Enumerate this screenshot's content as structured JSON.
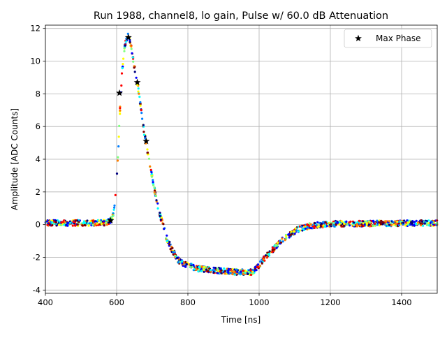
{
  "chart_data": {
    "type": "scatter",
    "title": "Run 1988, channel8, lo gain, Pulse w/ 60.0 dB Attenuation",
    "xlabel": "Time [ns]",
    "ylabel": "Amplitude [ADC Counts]",
    "xlim": [
      400,
      1500
    ],
    "ylim": [
      -4.2,
      12.2
    ],
    "xticks": [
      400,
      600,
      800,
      1000,
      1200,
      1400
    ],
    "yticks": [
      -4,
      -2,
      0,
      2,
      4,
      6,
      8,
      10,
      12
    ],
    "grid": true,
    "legend_position": "top-right",
    "legend": [
      {
        "label": "Max Phase",
        "marker": "star",
        "color": "#000000"
      }
    ],
    "pulse_profile": [
      [
        400,
        0.1
      ],
      [
        560,
        0.1
      ],
      [
        575,
        0.15
      ],
      [
        585,
        0.3
      ],
      [
        590,
        0.6
      ],
      [
        595,
        1.4
      ],
      [
        600,
        2.6
      ],
      [
        605,
        4.8
      ],
      [
        610,
        7.3
      ],
      [
        615,
        9.3
      ],
      [
        620,
        10.5
      ],
      [
        625,
        11.1
      ],
      [
        632,
        11.5
      ],
      [
        640,
        11.0
      ],
      [
        645,
        10.3
      ],
      [
        650,
        9.6
      ],
      [
        658,
        8.7
      ],
      [
        665,
        7.6
      ],
      [
        672,
        6.4
      ],
      [
        680,
        5.3
      ],
      [
        690,
        4.0
      ],
      [
        700,
        2.9
      ],
      [
        710,
        1.7
      ],
      [
        720,
        0.7
      ],
      [
        730,
        0.0
      ],
      [
        740,
        -0.8
      ],
      [
        750,
        -1.3
      ],
      [
        760,
        -1.7
      ],
      [
        770,
        -2.1
      ],
      [
        780,
        -2.3
      ],
      [
        800,
        -2.5
      ],
      [
        830,
        -2.7
      ],
      [
        880,
        -2.8
      ],
      [
        940,
        -2.9
      ],
      [
        980,
        -2.9
      ],
      [
        990,
        -2.7
      ],
      [
        1000,
        -2.5
      ],
      [
        1010,
        -2.2
      ],
      [
        1020,
        -1.9
      ],
      [
        1040,
        -1.5
      ],
      [
        1060,
        -1.0
      ],
      [
        1080,
        -0.7
      ],
      [
        1100,
        -0.4
      ],
      [
        1120,
        -0.2
      ],
      [
        1150,
        -0.05
      ],
      [
        1200,
        0.05
      ],
      [
        1500,
        0.1
      ]
    ],
    "max_phase_points": [
      {
        "x": 583,
        "y": 0.25
      },
      {
        "x": 608,
        "y": 8.05
      },
      {
        "x": 633,
        "y": 11.45
      },
      {
        "x": 658,
        "y": 8.7
      },
      {
        "x": 683,
        "y": 5.1
      }
    ],
    "colors": {
      "max_phase": "#000000",
      "grid": "#b0b0b0",
      "colormap": [
        "#00007f",
        "#0000ff",
        "#007fff",
        "#00ffff",
        "#7fff7f",
        "#ffff00",
        "#ff7f00",
        "#ff0000",
        "#7f0000"
      ]
    }
  }
}
